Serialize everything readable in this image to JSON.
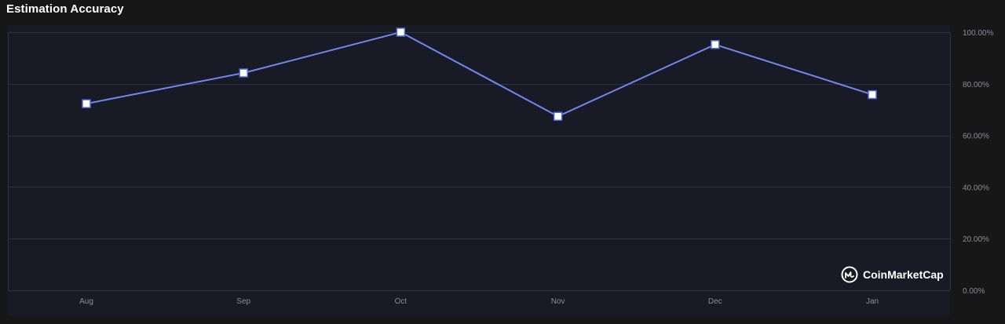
{
  "header": {
    "title": "Estimation Accuracy"
  },
  "watermark": {
    "text": "CoinMarketCap",
    "icon": "coinmarketcap-logo-icon"
  },
  "colors": {
    "page_background": "#171717",
    "plot_background": "#181a26",
    "line": "#6e88ee",
    "marker_fill": "#ffffff",
    "marker_stroke": "#4f6bd8",
    "grid": "#2f3240",
    "axis_text": "#8a8d96"
  },
  "chart_data": {
    "type": "line",
    "title": "Estimation Accuracy",
    "xlabel": "",
    "ylabel": "",
    "categories": [
      "Aug",
      "Sep",
      "Oct",
      "Nov",
      "Dec",
      "Jan"
    ],
    "series": [
      {
        "values": [
          72.3,
          84.2,
          100,
          67.4,
          95.2,
          75.8
        ],
        "marker": "square"
      }
    ],
    "ylim": [
      0,
      100
    ],
    "yticks": [
      "0.00%",
      "20.00%",
      "40.00%",
      "60.00%",
      "80.00%",
      "100.00%"
    ],
    "ytick_values": [
      0,
      20,
      40,
      60,
      80,
      100
    ],
    "y_axis_side": "right",
    "grid": true,
    "legend": "none"
  }
}
